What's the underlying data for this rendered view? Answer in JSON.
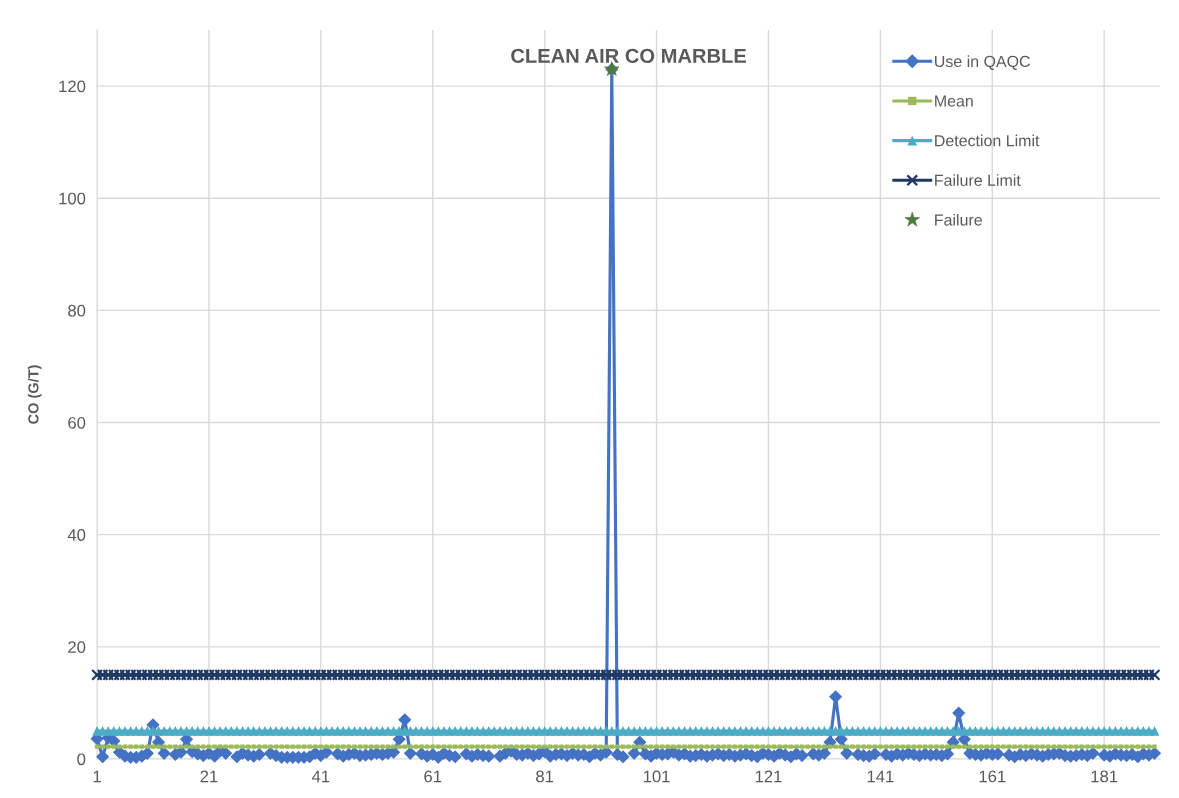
{
  "chart_data": {
    "type": "line",
    "title": "CLEAN AIR CO MARBLE",
    "ylabel": "CO (G/T)",
    "x": [
      1,
      2,
      3,
      4,
      5,
      6,
      7,
      8,
      9,
      10,
      11,
      12,
      13,
      14,
      15,
      16,
      17,
      18,
      19,
      20,
      21,
      22,
      23,
      24,
      25,
      26,
      27,
      28,
      29,
      30,
      31,
      32,
      33,
      34,
      35,
      36,
      37,
      38,
      39,
      40,
      41,
      42,
      43,
      44,
      45,
      46,
      47,
      48,
      49,
      50,
      51,
      52,
      53,
      54,
      55,
      56,
      57,
      58,
      59,
      60,
      61,
      62,
      63,
      64,
      65,
      66,
      67,
      68,
      69,
      70,
      71,
      72,
      73,
      74,
      75,
      76,
      77,
      78,
      79,
      80,
      81,
      82,
      83,
      84,
      85,
      86,
      87,
      88,
      89,
      90,
      91,
      92,
      93,
      94,
      95,
      96,
      97,
      98,
      99,
      100,
      101,
      102,
      103,
      104,
      105,
      106,
      107,
      108,
      109,
      110,
      111,
      112,
      113,
      114,
      115,
      116,
      117,
      118,
      119,
      120,
      121,
      122,
      123,
      124,
      125,
      126,
      127,
      128,
      129,
      130,
      131,
      132,
      133,
      134,
      135,
      136,
      137,
      138,
      139,
      140,
      141,
      142,
      143,
      144,
      145,
      146,
      147,
      148,
      149,
      150,
      151,
      152,
      153,
      154,
      155,
      156,
      157,
      158,
      159,
      160,
      161,
      162,
      163,
      164,
      165,
      166,
      167,
      168,
      169,
      170,
      171,
      172,
      173,
      174,
      175,
      176,
      177,
      178,
      179,
      180,
      181,
      182,
      183,
      184,
      185,
      186,
      187,
      188,
      189,
      190
    ],
    "series": [
      {
        "name": "Use in QAQC",
        "color": "#4472c4",
        "marker": "diamond",
        "values": [
          3.6,
          0.4,
          3.8,
          3.2,
          1.2,
          0.5,
          0.3,
          0.3,
          0.5,
          1.0,
          6.1,
          3.0,
          1.0,
          null,
          0.8,
          1.2,
          3.5,
          1.3,
          0.9,
          0.6,
          1.0,
          0.5,
          1.4,
          1.0,
          null,
          0.4,
          1.0,
          0.7,
          0.5,
          0.8,
          null,
          1.0,
          0.6,
          0.3,
          0.3,
          0.3,
          0.3,
          0.3,
          0.4,
          1.0,
          0.6,
          1.2,
          null,
          0.9,
          0.5,
          0.8,
          1.0,
          0.6,
          0.7,
          0.8,
          1.0,
          0.8,
          1.0,
          1.2,
          3.5,
          7.0,
          1.0,
          null,
          0.9,
          0.5,
          0.8,
          0.3,
          1.0,
          0.6,
          0.4,
          null,
          0.9,
          0.5,
          0.8,
          0.6,
          0.5,
          null,
          0.5,
          1.0,
          1.4,
          0.8,
          0.7,
          1.0,
          0.6,
          0.9,
          1.3,
          0.5,
          0.8,
          0.9,
          0.6,
          1.0,
          0.7,
          0.8,
          0.4,
          1.0,
          0.7,
          1.2,
          123,
          0.8,
          0.4,
          null,
          1.0,
          3.0,
          0.9,
          0.5,
          1.0,
          0.8,
          0.9,
          1.2,
          0.7,
          0.9,
          0.5,
          0.6,
          0.8,
          0.5,
          0.7,
          0.9,
          0.6,
          0.8,
          0.5,
          0.7,
          0.9,
          0.6,
          0.4,
          1.0,
          0.8,
          0.5,
          1.0,
          0.7,
          0.4,
          0.9,
          0.6,
          null,
          0.9,
          0.7,
          1.0,
          3.0,
          11.1,
          3.5,
          1.0,
          null,
          0.8,
          0.6,
          0.5,
          0.9,
          null,
          0.8,
          0.5,
          0.9,
          0.7,
          1.0,
          0.8,
          0.6,
          0.9,
          0.7,
          0.8,
          0.6,
          0.9,
          3.0,
          8.2,
          3.5,
          1.0,
          0.8,
          0.7,
          1.0,
          0.8,
          0.9,
          null,
          0.7,
          0.4,
          0.8,
          0.6,
          0.9,
          0.7,
          0.5,
          0.8,
          0.9,
          1.0,
          0.6,
          0.5,
          0.6,
          0.8,
          0.6,
          1.0,
          null,
          0.7,
          0.5,
          0.9,
          0.7,
          0.6,
          0.8,
          0.4,
          0.9,
          0.7,
          1.0
        ]
      },
      {
        "name": "Mean",
        "color": "#9bbb59",
        "marker": "square",
        "values": [
          2.2,
          2.2,
          2.2,
          2.2,
          2.2,
          2.2,
          2.2,
          2.2,
          2.2,
          2.2,
          2.2,
          2.2,
          2.2,
          2.2,
          2.2,
          2.2,
          2.2,
          2.2,
          2.2,
          2.2,
          2.2,
          2.2,
          2.2,
          2.2,
          2.2,
          2.2,
          2.2,
          2.2,
          2.2,
          2.2,
          2.2,
          2.2,
          2.2,
          2.2,
          2.2,
          2.2,
          2.2,
          2.2,
          2.2,
          2.2,
          2.2,
          2.2,
          2.2,
          2.2,
          2.2,
          2.2,
          2.2,
          2.2,
          2.2,
          2.2,
          2.2,
          2.2,
          2.2,
          2.2,
          2.2,
          2.2,
          2.2,
          2.2,
          2.2,
          2.2,
          2.2,
          2.2,
          2.2,
          2.2,
          2.2,
          2.2,
          2.2,
          2.2,
          2.2,
          2.2,
          2.2,
          2.2,
          2.2,
          2.2,
          2.2,
          2.2,
          2.2,
          2.2,
          2.2,
          2.2,
          2.2,
          2.2,
          2.2,
          2.2,
          2.2,
          2.2,
          2.2,
          2.2,
          2.2,
          2.2,
          2.2,
          2.2,
          2.2,
          2.2,
          2.2,
          2.2,
          2.2,
          2.2,
          2.2,
          2.2,
          2.2,
          2.2,
          2.2,
          2.2,
          2.2,
          2.2,
          2.2,
          2.2,
          2.2,
          2.2,
          2.2,
          2.2,
          2.2,
          2.2,
          2.2,
          2.2,
          2.2,
          2.2,
          2.2,
          2.2,
          2.2,
          2.2,
          2.2,
          2.2,
          2.2,
          2.2,
          2.2,
          2.2,
          2.2,
          2.2,
          2.2,
          2.2,
          2.2,
          2.2,
          2.2,
          2.2,
          2.2,
          2.2,
          2.2,
          2.2,
          2.2,
          2.2,
          2.2,
          2.2,
          2.2,
          2.2,
          2.2,
          2.2,
          2.2,
          2.2,
          2.2,
          2.2,
          2.2,
          2.2,
          2.2,
          2.2,
          2.2,
          2.2,
          2.2,
          2.2,
          2.2,
          2.2,
          2.2,
          2.2,
          2.2,
          2.2,
          2.2,
          2.2,
          2.2,
          2.2,
          2.2,
          2.2,
          2.2,
          2.2,
          2.2,
          2.2,
          2.2,
          2.2,
          2.2,
          2.2,
          2.2,
          2.2,
          2.2,
          2.2,
          2.2,
          2.2,
          2.2,
          2.2,
          2.2,
          2.2
        ]
      },
      {
        "name": "Detection Limit",
        "color": "#4bacc6",
        "marker": "triangle",
        "values": [
          5,
          5,
          5,
          5,
          5,
          5,
          5,
          5,
          5,
          5,
          5,
          5,
          5,
          5,
          5,
          5,
          5,
          5,
          5,
          5,
          5,
          5,
          5,
          5,
          5,
          5,
          5,
          5,
          5,
          5,
          5,
          5,
          5,
          5,
          5,
          5,
          5,
          5,
          5,
          5,
          5,
          5,
          5,
          5,
          5,
          5,
          5,
          5,
          5,
          5,
          5,
          5,
          5,
          5,
          5,
          5,
          5,
          5,
          5,
          5,
          5,
          5,
          5,
          5,
          5,
          5,
          5,
          5,
          5,
          5,
          5,
          5,
          5,
          5,
          5,
          5,
          5,
          5,
          5,
          5,
          5,
          5,
          5,
          5,
          5,
          5,
          5,
          5,
          5,
          5,
          5,
          5,
          5,
          5,
          5,
          5,
          5,
          5,
          5,
          5,
          5,
          5,
          5,
          5,
          5,
          5,
          5,
          5,
          5,
          5,
          5,
          5,
          5,
          5,
          5,
          5,
          5,
          5,
          5,
          5,
          5,
          5,
          5,
          5,
          5,
          5,
          5,
          5,
          5,
          5,
          5,
          5,
          5,
          5,
          5,
          5,
          5,
          5,
          5,
          5,
          5,
          5,
          5,
          5,
          5,
          5,
          5,
          5,
          5,
          5,
          5,
          5,
          5,
          5,
          5,
          5,
          5,
          5,
          5,
          5,
          5,
          5,
          5,
          5,
          5,
          5,
          5,
          5,
          5,
          5,
          5,
          5,
          5,
          5,
          5,
          5,
          5,
          5,
          5,
          5,
          5,
          5,
          5,
          5,
          5,
          5,
          5,
          5,
          5,
          5
        ]
      },
      {
        "name": "Failure Limit",
        "color": "#1f3864",
        "marker": "cross",
        "values": [
          15,
          15,
          15,
          15,
          15,
          15,
          15,
          15,
          15,
          15,
          15,
          15,
          15,
          15,
          15,
          15,
          15,
          15,
          15,
          15,
          15,
          15,
          15,
          15,
          15,
          15,
          15,
          15,
          15,
          15,
          15,
          15,
          15,
          15,
          15,
          15,
          15,
          15,
          15,
          15,
          15,
          15,
          15,
          15,
          15,
          15,
          15,
          15,
          15,
          15,
          15,
          15,
          15,
          15,
          15,
          15,
          15,
          15,
          15,
          15,
          15,
          15,
          15,
          15,
          15,
          15,
          15,
          15,
          15,
          15,
          15,
          15,
          15,
          15,
          15,
          15,
          15,
          15,
          15,
          15,
          15,
          15,
          15,
          15,
          15,
          15,
          15,
          15,
          15,
          15,
          15,
          15,
          15,
          15,
          15,
          15,
          15,
          15,
          15,
          15,
          15,
          15,
          15,
          15,
          15,
          15,
          15,
          15,
          15,
          15,
          15,
          15,
          15,
          15,
          15,
          15,
          15,
          15,
          15,
          15,
          15,
          15,
          15,
          15,
          15,
          15,
          15,
          15,
          15,
          15,
          15,
          15,
          15,
          15,
          15,
          15,
          15,
          15,
          15,
          15,
          15,
          15,
          15,
          15,
          15,
          15,
          15,
          15,
          15,
          15,
          15,
          15,
          15,
          15,
          15,
          15,
          15,
          15,
          15,
          15,
          15,
          15,
          15,
          15,
          15,
          15,
          15,
          15,
          15,
          15,
          15,
          15,
          15,
          15,
          15,
          15,
          15,
          15,
          15,
          15,
          15,
          15,
          15,
          15,
          15,
          15,
          15,
          15,
          15,
          15
        ]
      },
      {
        "name": "Failure",
        "type": "scatter",
        "color": "#4e7b3a",
        "marker": "star",
        "x": [
          93
        ],
        "values": [
          123
        ]
      }
    ],
    "xlim": [
      1,
      191
    ],
    "xticks": [
      1,
      21,
      41,
      61,
      81,
      101,
      121,
      141,
      161,
      181
    ],
    "ylim": [
      0,
      130
    ],
    "yticks": [
      0,
      20,
      40,
      60,
      80,
      100,
      120
    ],
    "grid": true,
    "legend": "top right"
  }
}
